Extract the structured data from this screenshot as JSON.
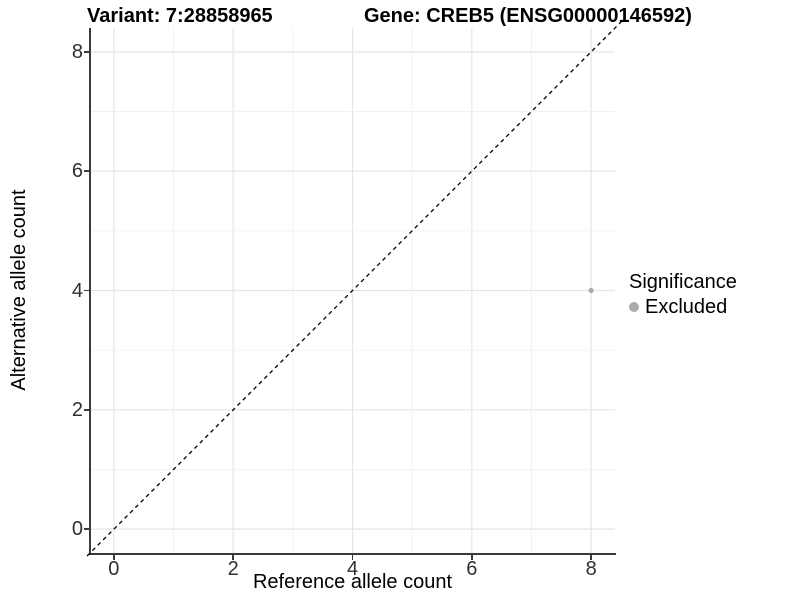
{
  "titles": {
    "variant": "Variant: 7:28858965",
    "gene": "Gene: CREB5 (ENSG00000146592)"
  },
  "colors": {
    "point": "#ababab",
    "grid_major": "#e5e5e5",
    "grid_minor": "#f1f1f1",
    "axis": "#3a3a3a",
    "reference_line": "#000000",
    "text": "#000000"
  },
  "chart_data": {
    "type": "scatter",
    "title_left": "Variant: 7:28858965",
    "title_right": "Gene: CREB5 (ENSG00000146592)",
    "xlabel": "Reference allele count",
    "ylabel": "Alternative allele count",
    "xlim": [
      -0.4,
      8.4
    ],
    "ylim": [
      -0.4,
      8.4
    ],
    "x_ticks": [
      0,
      2,
      4,
      6,
      8
    ],
    "y_ticks": [
      0,
      2,
      4,
      6,
      8
    ],
    "grid": "on",
    "grid_every": 1,
    "points": [
      {
        "x": 8,
        "y": 4,
        "series": "Excluded",
        "color": "#ababab",
        "radius": 2.6
      }
    ],
    "reference_line": {
      "type": "identity",
      "slope": 1,
      "intercept": 0,
      "style": "dashed",
      "color": "#000000"
    },
    "legend": {
      "title": "Significance",
      "position": "right",
      "entries": [
        {
          "label": "Excluded",
          "color": "#ababab",
          "marker": "circle"
        }
      ]
    }
  }
}
